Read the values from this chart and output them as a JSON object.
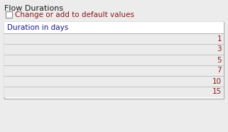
{
  "title": "Flow Durations",
  "checkbox_label": "Change or add to default values",
  "column_header": "Duration in days",
  "values": [
    1,
    3,
    5,
    7,
    10,
    15
  ],
  "panel_bg": "#ececec",
  "table_bg": "#ffffff",
  "table_row_alt": "#ebebeb",
  "header_text_color": "#1a1a8c",
  "value_text_color": "#8b1a1a",
  "title_color": "#1a1a1a",
  "checkbox_label_color": "#8b1a1a",
  "border_color": "#b0b0b0",
  "title_fontsize": 8,
  "checkbox_fontsize": 7.5,
  "header_fontsize": 7.5,
  "value_fontsize": 7.5
}
